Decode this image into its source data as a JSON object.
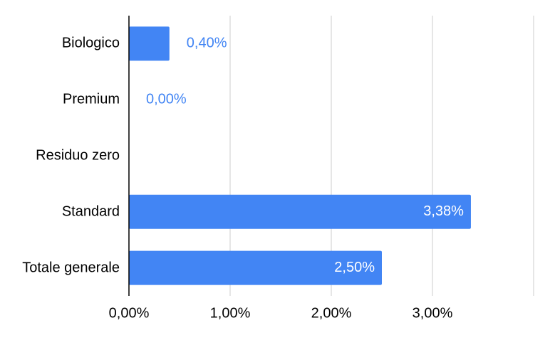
{
  "chart_data": {
    "type": "bar",
    "orientation": "horizontal",
    "categories": [
      "Biologico",
      "Premium",
      "Residuo zero",
      "Standard",
      "Totale generale"
    ],
    "values": [
      0.4,
      0.0,
      null,
      3.38,
      2.5
    ],
    "value_labels": [
      "0,40%",
      "0,00%",
      null,
      "3,38%",
      "2,50%"
    ],
    "color": "#4285f4",
    "xlim": [
      0,
      4
    ],
    "xticks": [
      {
        "value": 0,
        "label": "0,00%"
      },
      {
        "value": 1,
        "label": "1,00%"
      },
      {
        "value": 2,
        "label": "2,00%"
      },
      {
        "value": 3,
        "label": "3,00%"
      }
    ],
    "grid": true
  }
}
